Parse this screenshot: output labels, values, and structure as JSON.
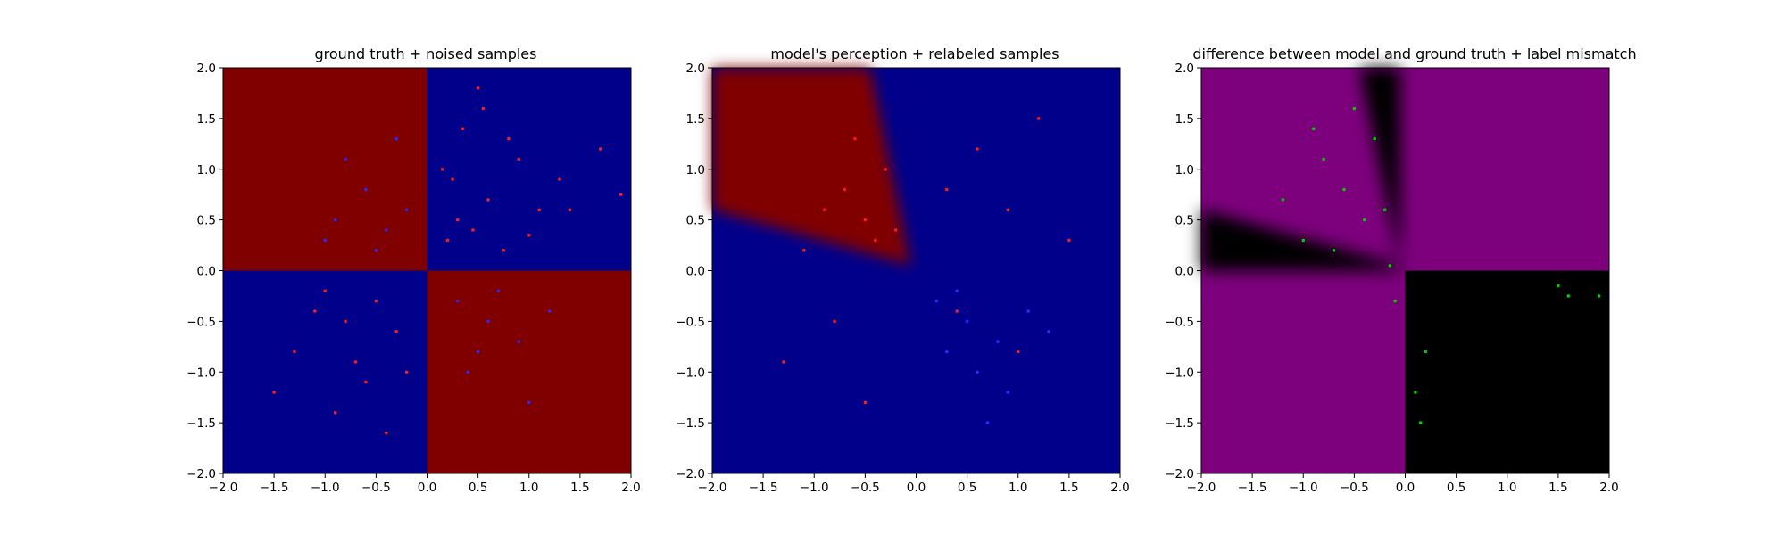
{
  "chart_data": [
    {
      "type": "heatmap",
      "title": "ground truth + noised samples",
      "xlim": [
        -2.0,
        2.0
      ],
      "ylim": [
        -2.0,
        2.0
      ],
      "xticks": [
        "−2.0",
        "−1.5",
        "−1.0",
        "−0.5",
        "0.0",
        "0.5",
        "1.0",
        "1.5",
        "2.0"
      ],
      "yticks": [
        "−2.0",
        "−1.5",
        "−1.0",
        "−0.5",
        "0.0",
        "0.5",
        "1.0",
        "1.5",
        "2.0"
      ],
      "grid": false,
      "background": "quadrant checkerboard: class A (dark red) where x*y < 0, class B (dark blue) where x*y > 0",
      "colors": {
        "class_a": "#800000",
        "class_b": "#00008b"
      },
      "points": [
        {
          "color": "#ff1a1a",
          "x": [
            0.2,
            0.3,
            0.45,
            0.6,
            0.75,
            0.9,
            1.1,
            1.3,
            0.35,
            0.55,
            0.8,
            1.0,
            0.25,
            0.5,
            1.4,
            1.7,
            1.9,
            0.15,
            -0.5,
            -0.8,
            -1.0,
            -1.3,
            -0.6,
            -0.3,
            -0.9,
            -1.5,
            -0.7,
            -0.4,
            -1.1,
            -0.2
          ],
          "y": [
            0.3,
            0.5,
            0.4,
            0.7,
            0.2,
            1.1,
            0.6,
            0.9,
            1.4,
            1.6,
            1.3,
            0.35,
            0.9,
            1.8,
            0.6,
            1.2,
            0.75,
            1.0,
            -0.3,
            -0.5,
            -0.2,
            -0.8,
            -1.1,
            -0.6,
            -1.4,
            -1.2,
            -0.9,
            -1.6,
            -0.4,
            -1.0
          ]
        },
        {
          "color": "#2a2aff",
          "x": [
            -0.4,
            -0.6,
            -0.8,
            -0.3,
            -1.0,
            -0.5,
            -0.2,
            -0.9,
            0.3,
            0.6,
            0.9,
            1.2,
            0.4,
            0.7,
            0.5,
            1.0
          ],
          "y": [
            0.4,
            0.8,
            1.1,
            1.3,
            0.3,
            0.2,
            0.6,
            0.5,
            -0.3,
            -0.5,
            -0.7,
            -0.4,
            -1.0,
            -0.2,
            -0.8,
            -1.3
          ]
        }
      ]
    },
    {
      "type": "heatmap",
      "title": "model's perception + relabeled samples",
      "xlim": [
        -2.0,
        2.0
      ],
      "ylim": [
        -2.0,
        2.0
      ],
      "xticks": [
        "−2.0",
        "−1.5",
        "−1.0",
        "−0.5",
        "0.0",
        "0.5",
        "1.0",
        "1.5",
        "2.0"
      ],
      "yticks": [
        "−2.0",
        "−1.5",
        "−1.0",
        "−0.5",
        "0.0",
        "0.5",
        "1.0",
        "1.5",
        "2.0"
      ],
      "grid": false,
      "background": "blue field with a dark red wedge in the upper-left quadrant (model's learned decision region)",
      "colors": {
        "class_a": "#800000",
        "class_b": "#00008b"
      },
      "points": [
        {
          "color": "#ff1a1a",
          "x": [
            -0.5,
            -0.7,
            -0.4,
            -0.3,
            -0.9,
            -0.6,
            -0.2,
            -1.1,
            0.3,
            0.6,
            0.9,
            1.2,
            -0.8,
            -1.3,
            -0.5,
            0.4,
            1.0,
            1.5
          ],
          "y": [
            0.5,
            0.8,
            0.3,
            1.0,
            0.6,
            1.3,
            0.4,
            0.2,
            0.8,
            1.2,
            0.6,
            1.5,
            -0.5,
            -0.9,
            -1.3,
            -0.4,
            -0.8,
            0.3
          ]
        },
        {
          "color": "#2a2aff",
          "x": [
            0.2,
            0.5,
            0.8,
            0.3,
            1.1,
            0.6,
            0.4,
            0.9,
            1.3,
            0.7
          ],
          "y": [
            -0.3,
            -0.5,
            -0.7,
            -0.8,
            -0.4,
            -1.0,
            -0.2,
            -1.2,
            -0.6,
            -1.5
          ]
        }
      ]
    },
    {
      "type": "heatmap",
      "title": "difference between model and ground truth + label mismatch",
      "xlim": [
        -2.0,
        2.0
      ],
      "ylim": [
        -2.0,
        2.0
      ],
      "xticks": [
        "−2.0",
        "−1.5",
        "−1.0",
        "−0.5",
        "0.0",
        "0.5",
        "1.0",
        "1.5",
        "2.0"
      ],
      "yticks": [
        "−2.0",
        "−1.5",
        "−1.0",
        "−0.5",
        "0.0",
        "0.5",
        "1.0",
        "1.5",
        "2.0"
      ],
      "grid": false,
      "background": "magenta where model disagrees with ground truth, black where it agrees",
      "colors": {
        "disagree": "#7d007d",
        "agree": "#000000"
      },
      "points": [
        {
          "color": "#00cc00",
          "x": [
            -0.4,
            -0.6,
            -0.8,
            -0.3,
            -1.0,
            -0.5,
            -0.2,
            -1.2,
            -0.7,
            -0.9,
            0.2,
            0.1,
            0.15,
            1.5,
            1.6,
            1.9,
            -0.1,
            -0.15
          ],
          "y": [
            0.5,
            0.8,
            1.1,
            1.3,
            0.3,
            1.6,
            0.6,
            0.7,
            0.2,
            1.4,
            -0.8,
            -1.2,
            -1.5,
            -0.15,
            -0.25,
            -0.25,
            -0.3,
            0.05
          ]
        }
      ]
    }
  ]
}
